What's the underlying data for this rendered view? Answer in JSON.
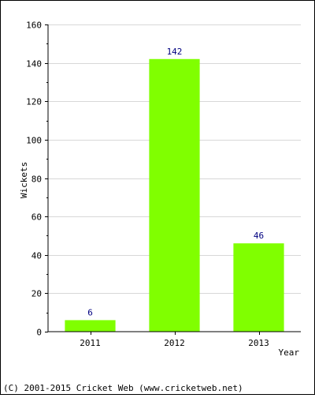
{
  "chart_data": {
    "type": "bar",
    "categories": [
      "2011",
      "2012",
      "2013"
    ],
    "values": [
      6,
      142,
      46
    ],
    "data_labels": [
      "6",
      "142",
      "46"
    ],
    "xlabel": "Year",
    "ylabel": "Wickets",
    "ylim": [
      0,
      160
    ],
    "yticks": [
      0,
      20,
      40,
      60,
      80,
      100,
      120,
      140,
      160
    ],
    "ytick_labels": [
      "0",
      "20",
      "40",
      "60",
      "80",
      "100",
      "120",
      "140",
      "160"
    ],
    "grid": "horizontal",
    "bar_color": "#80ff00",
    "label_color": "#000080",
    "gridline_color": "#d8d8d8"
  },
  "footer": {
    "copyright": "(C) 2001-2015 Cricket Web (www.cricketweb.net)"
  }
}
